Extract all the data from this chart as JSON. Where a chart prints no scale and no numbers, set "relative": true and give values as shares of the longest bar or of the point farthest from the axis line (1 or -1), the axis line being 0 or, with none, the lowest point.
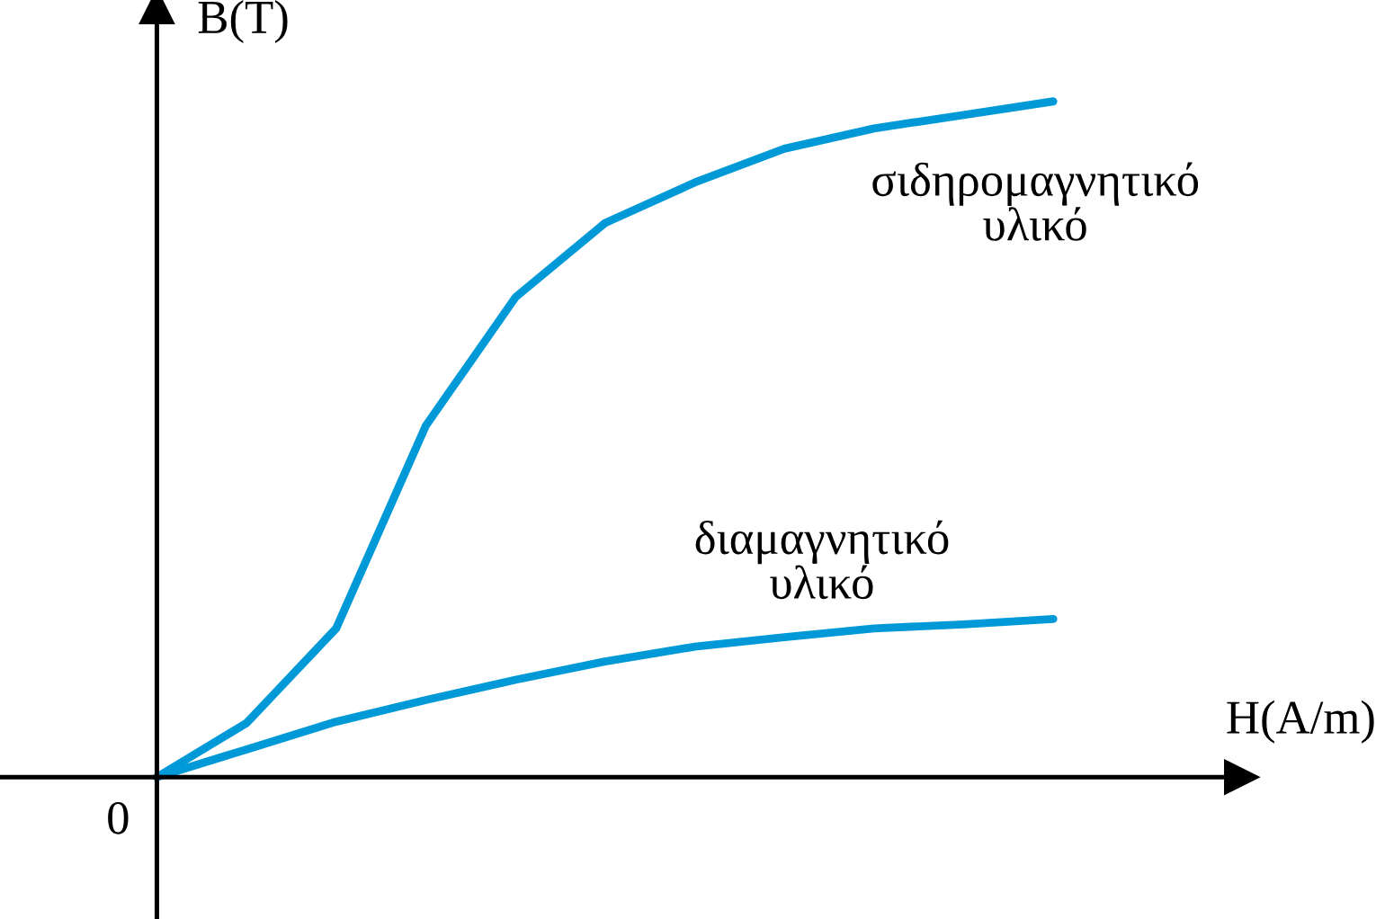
{
  "chart_data": {
    "type": "line",
    "relative": true,
    "xlabel": "H(A/m)",
    "ylabel": "B(T)",
    "annotations": [
      "0"
    ],
    "marker": "none",
    "line_style": "solid",
    "categories": [
      null,
      null,
      null,
      null,
      null,
      null,
      null,
      null,
      null,
      null,
      null
    ],
    "series": [
      {
        "name": "σιδηρομαγνητικό υλικό",
        "color": "#0099d8",
        "values": [
          0,
          0.08,
          0.22,
          0.52,
          0.71,
          0.82,
          0.88,
          0.93,
          0.96,
          0.98,
          1
        ]
      },
      {
        "name": "διαμαγνητικό υλικό",
        "color": "#0099d8",
        "values": [
          0,
          0.041,
          0.082,
          0.114,
          0.144,
          0.171,
          0.193,
          0.207,
          0.22,
          0.226,
          0.234
        ]
      }
    ]
  }
}
